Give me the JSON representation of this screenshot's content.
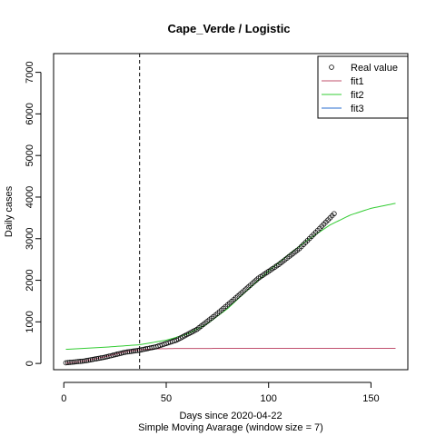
{
  "chart_data": {
    "type": "scatter",
    "title": "Cape_Verde / Logistic",
    "xlabel": "Days since 2020-04-22",
    "ylabel": "Daily cases",
    "subtitle": "Simple Moving Avarage (window size = 7)",
    "xlim": [
      -5,
      168
    ],
    "ylim": [
      -150,
      7450
    ],
    "x_ticks": [
      0,
      50,
      100,
      150
    ],
    "y_ticks": [
      0,
      1000,
      2000,
      3000,
      4000,
      5000,
      6000,
      7000
    ],
    "vline_x": 37,
    "grid": false,
    "legend_position": "top-right",
    "legend": [
      {
        "label": "Real value",
        "kind": "point",
        "color": "#000000"
      },
      {
        "label": "fit1",
        "kind": "line",
        "color": "#c0506e"
      },
      {
        "label": "fit2",
        "kind": "line",
        "color": "#33cc33"
      },
      {
        "label": "fit3",
        "kind": "line",
        "color": "#2a6ccf"
      }
    ],
    "series": [
      {
        "name": "Real value",
        "style": "points",
        "x_range": [
          1,
          132
        ],
        "anchors": [
          [
            1,
            15
          ],
          [
            10,
            60
          ],
          [
            20,
            150
          ],
          [
            30,
            270
          ],
          [
            37,
            320
          ],
          [
            45,
            400
          ],
          [
            55,
            560
          ],
          [
            65,
            820
          ],
          [
            75,
            1200
          ],
          [
            85,
            1620
          ],
          [
            95,
            2050
          ],
          [
            105,
            2380
          ],
          [
            115,
            2760
          ],
          [
            125,
            3250
          ],
          [
            132,
            3600
          ]
        ]
      },
      {
        "name": "fit1",
        "style": "line",
        "x_range": [
          1,
          162
        ],
        "anchors": [
          [
            1,
            5
          ],
          [
            10,
            60
          ],
          [
            20,
            160
          ],
          [
            30,
            280
          ],
          [
            37,
            330
          ],
          [
            45,
            352
          ],
          [
            55,
            360
          ],
          [
            75,
            362
          ],
          [
            162,
            363
          ]
        ]
      },
      {
        "name": "fit2",
        "style": "line",
        "x_range": [
          1,
          162
        ],
        "anchors": [
          [
            1,
            340
          ],
          [
            20,
            390
          ],
          [
            37,
            450
          ],
          [
            50,
            560
          ],
          [
            60,
            700
          ],
          [
            70,
            950
          ],
          [
            80,
            1320
          ],
          [
            90,
            1780
          ],
          [
            100,
            2220
          ],
          [
            110,
            2630
          ],
          [
            120,
            3000
          ],
          [
            130,
            3330
          ],
          [
            140,
            3570
          ],
          [
            150,
            3730
          ],
          [
            162,
            3850
          ]
        ]
      }
    ]
  }
}
